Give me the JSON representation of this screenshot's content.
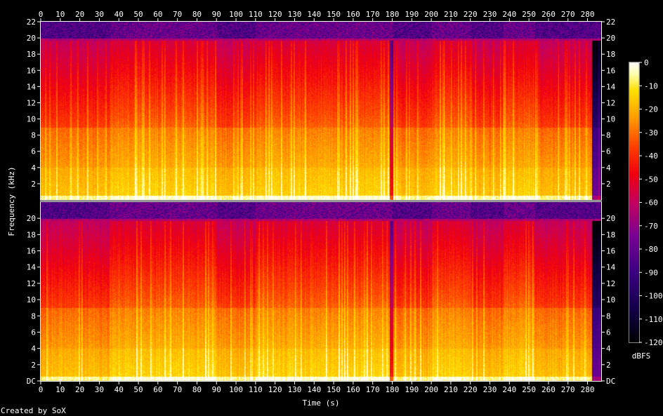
{
  "chart_data": {
    "type": "heatmap",
    "title": "",
    "xlabel": "Time (s)",
    "ylabel": "Frequency (kHz)",
    "channels": 2,
    "xlim": [
      0,
      287
    ],
    "ylim_khz": [
      0,
      22
    ],
    "x_ticks": [
      "0",
      "10",
      "20",
      "30",
      "40",
      "50",
      "60",
      "70",
      "80",
      "90",
      "100",
      "110",
      "120",
      "130",
      "140",
      "150",
      "160",
      "170",
      "180",
      "190",
      "200",
      "210",
      "220",
      "230",
      "240",
      "250",
      "260",
      "270",
      "280"
    ],
    "y_ticks_top": [
      "2",
      "4",
      "6",
      "8",
      "10",
      "12",
      "14",
      "16",
      "18",
      "20",
      "22"
    ],
    "y_ticks_bottom": [
      "DC",
      "2",
      "4",
      "6",
      "8",
      "10",
      "12",
      "14",
      "16",
      "18",
      "20"
    ],
    "colorbar": {
      "label": "dBFS",
      "range": [
        -120,
        0
      ],
      "ticks": [
        "0",
        "-10",
        "-20",
        "-30",
        "-40",
        "-50",
        "-60",
        "-70",
        "-80",
        "-90",
        "-100",
        "-110",
        "-120"
      ]
    },
    "bandwidth_cutoff_khz": 20,
    "quiet_segments_s": [
      [
        0,
        35
      ],
      [
        90,
        110
      ],
      [
        180,
        200
      ],
      [
        220,
        237
      ],
      [
        253,
        287
      ]
    ],
    "loud_segments_s": [
      [
        35,
        90
      ],
      [
        110,
        180
      ],
      [
        200,
        220
      ],
      [
        237,
        253
      ]
    ],
    "colors": [
      "#000000",
      "#14004a",
      "#3c0082",
      "#7a0096",
      "#c40060",
      "#f00010",
      "#ff4000",
      "#ff9a00",
      "#ffe000",
      "#ffffb0",
      "#ffffff"
    ]
  },
  "footer": {
    "credit": "Created by SoX"
  }
}
